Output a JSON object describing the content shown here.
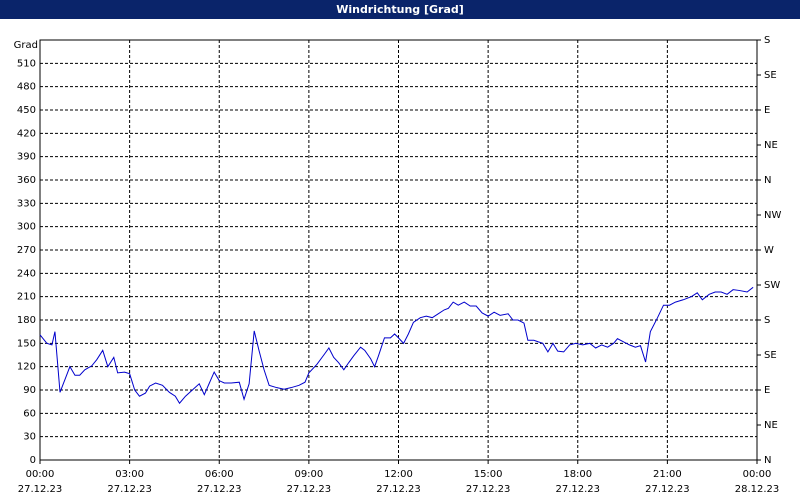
{
  "chart_data": {
    "type": "line",
    "title": "Windrichtung [Grad]",
    "ylabel": "Grad",
    "grid": true,
    "x": [
      0,
      0.23,
      0.4,
      0.5,
      0.67,
      0.83,
      1,
      1.17,
      1.33,
      1.5,
      1.73,
      1.9,
      2.1,
      2.27,
      2.47,
      2.6,
      2.83,
      3,
      3.17,
      3.33,
      3.53,
      3.67,
      3.87,
      4.1,
      4.33,
      4.53,
      4.67,
      4.87,
      5.1,
      5.33,
      5.5,
      5.67,
      5.83,
      6,
      6.17,
      6.4,
      6.67,
      6.83,
      7,
      7.17,
      7.33,
      7.5,
      7.67,
      7.93,
      8.17,
      8.4,
      8.67,
      8.87,
      9,
      9.27,
      9.5,
      9.67,
      9.83,
      10,
      10.17,
      10.33,
      10.5,
      10.73,
      10.87,
      11.07,
      11.2,
      11.33,
      11.53,
      11.73,
      11.87,
      12,
      12.17,
      12.33,
      12.5,
      12.73,
      12.93,
      13.13,
      13.33,
      13.53,
      13.67,
      13.83,
      14,
      14.2,
      14.4,
      14.6,
      14.8,
      15,
      15.2,
      15.4,
      15.67,
      15.83,
      16,
      16.2,
      16.33,
      16.53,
      16.67,
      16.83,
      17,
      17.17,
      17.33,
      17.53,
      17.73,
      17.93,
      18.17,
      18.4,
      18.6,
      18.8,
      19,
      19.2,
      19.33,
      19.53,
      19.73,
      19.93,
      20.1,
      20.27,
      20.43,
      20.67,
      20.87,
      21.07,
      21.27,
      21.53,
      21.8,
      22,
      22.17,
      22.4,
      22.6,
      22.8,
      23,
      23.2,
      23.4,
      23.67,
      23.87
    ],
    "series": [
      {
        "color": "#0000cc",
        "values": [
          161,
          150,
          148,
          165,
          87,
          103,
          120,
          109,
          109,
          116,
          121,
          129,
          141,
          120,
          132,
          112,
          113,
          111,
          90,
          82,
          86,
          95,
          99,
          96,
          87,
          82,
          73,
          82,
          90,
          98,
          84,
          99,
          113,
          102,
          99,
          99,
          100,
          78,
          98,
          166,
          141,
          116,
          96,
          93,
          91,
          93,
          96,
          100,
          112,
          123,
          135,
          144,
          132,
          125,
          116,
          125,
          134,
          145,
          141,
          130,
          120,
          134,
          157,
          157,
          162,
          157,
          150,
          162,
          177,
          183,
          185,
          183,
          188,
          193,
          195,
          203,
          199,
          203,
          198,
          198,
          189,
          185,
          190,
          186,
          188,
          180,
          180,
          176,
          154,
          154,
          152,
          150,
          139,
          150,
          140,
          139,
          148,
          150,
          148,
          150,
          144,
          148,
          145,
          150,
          156,
          152,
          148,
          145,
          147,
          126,
          165,
          183,
          199,
          199,
          203,
          206,
          210,
          215,
          206,
          213,
          216,
          216,
          213,
          219,
          218,
          216,
          222
        ]
      }
    ],
    "xlim": [
      0,
      24
    ],
    "xticks": [
      {
        "value": 0,
        "label": "00:00"
      },
      {
        "value": 3,
        "label": "03:00"
      },
      {
        "value": 6,
        "label": "06:00"
      },
      {
        "value": 9,
        "label": "09:00"
      },
      {
        "value": 12,
        "label": "12:00"
      },
      {
        "value": 15,
        "label": "15:00"
      },
      {
        "value": 18,
        "label": "18:00"
      },
      {
        "value": 21,
        "label": "21:00"
      },
      {
        "value": 24,
        "label": "00:00"
      }
    ],
    "xtick_dates": [
      "27.12.23",
      "27.12.23",
      "27.12.23",
      "27.12.23",
      "27.12.23",
      "27.12.23",
      "27.12.23",
      "27.12.23",
      "28.12.23"
    ],
    "ylim": [
      0,
      540
    ],
    "yticks": [
      0,
      30,
      60,
      90,
      120,
      150,
      180,
      210,
      240,
      270,
      300,
      330,
      360,
      390,
      420,
      450,
      480,
      510
    ],
    "y2lim": [
      0,
      540
    ],
    "y2ticks": [
      {
        "value": 0,
        "label": "N"
      },
      {
        "value": 45,
        "label": "NE"
      },
      {
        "value": 90,
        "label": "E"
      },
      {
        "value": 135,
        "label": "SE"
      },
      {
        "value": 180,
        "label": "S"
      },
      {
        "value": 225,
        "label": "SW"
      },
      {
        "value": 270,
        "label": "W"
      },
      {
        "value": 315,
        "label": "NW"
      },
      {
        "value": 360,
        "label": "N"
      },
      {
        "value": 405,
        "label": "NE"
      },
      {
        "value": 450,
        "label": "E"
      },
      {
        "value": 495,
        "label": "SE"
      },
      {
        "value": 540,
        "label": "S"
      }
    ]
  }
}
